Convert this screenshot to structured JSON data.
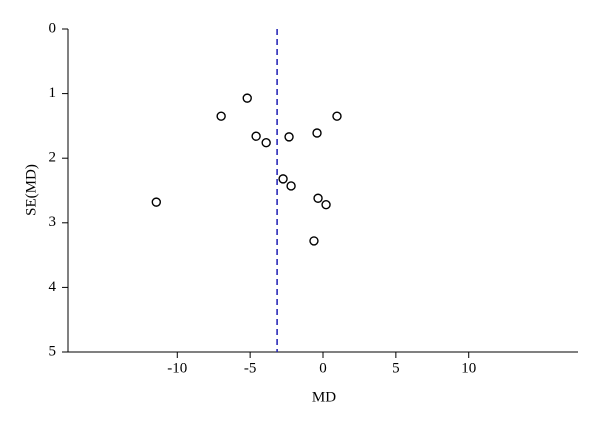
{
  "chart_data": {
    "type": "scatter",
    "x_label": "MD",
    "y_label": "SE(MD)",
    "x": [
      -5.2,
      -6.99,
      0.96,
      -4.59,
      -3.9,
      -2.33,
      -0.41,
      -2.74,
      -2.19,
      -0.34,
      0.21,
      -11.44,
      -0.62
    ],
    "values": [
      1.07,
      1.35,
      1.35,
      1.66,
      1.76,
      1.67,
      1.61,
      2.32,
      2.43,
      2.62,
      2.72,
      2.68,
      3.28
    ],
    "color": "#000000",
    "xlim": [
      -17.5,
      17.5
    ],
    "xticks": [
      -10,
      -5,
      0,
      5,
      10
    ],
    "ylim": [
      5,
      0
    ],
    "yticks": [
      0,
      1,
      2,
      3,
      4,
      5
    ],
    "ref_line": -3.15,
    "ref_line_color": "#2a2ab8"
  }
}
